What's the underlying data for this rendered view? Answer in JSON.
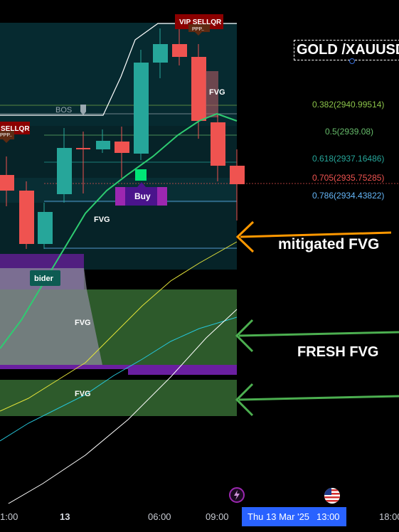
{
  "symbol": "GOLD /XAUUSD",
  "fib_levels": [
    {
      "label": "0.382(2940.99514)",
      "color": "#8bc34a"
    },
    {
      "label": "0.5(2939.08)",
      "color": "#66bb6a"
    },
    {
      "label": "0.618(2937.16486)",
      "color": "#26a69a"
    },
    {
      "label": "0.705(2935.75285)",
      "color": "#ef5350"
    },
    {
      "label": "0.786(2934.43822)",
      "color": "#64b5f6"
    }
  ],
  "chart_labels": {
    "bos": "BOS",
    "fvg": "FVG",
    "vip_sell": "VIP SELLQR",
    "ppp": "PPP..",
    "sell_left": "SELLQR",
    "buy": "Buy",
    "bider": "bider"
  },
  "annotations": {
    "mitigated": "mitigated FVG",
    "fresh": "FRESH FVG"
  },
  "time_axis": {
    "ticks": [
      "1:00",
      "13",
      "06:00",
      "09:00",
      "18:00"
    ],
    "current_date": "Thu 13 Mar '25",
    "current_time": "13:00"
  },
  "colors": {
    "bull": "#26a69a",
    "bear": "#ef5350",
    "fvg_zone": "#2e5e2e",
    "arrow_orange": "#ff9800",
    "arrow_green": "#4caf50",
    "date_badge": "#2962ff"
  }
}
